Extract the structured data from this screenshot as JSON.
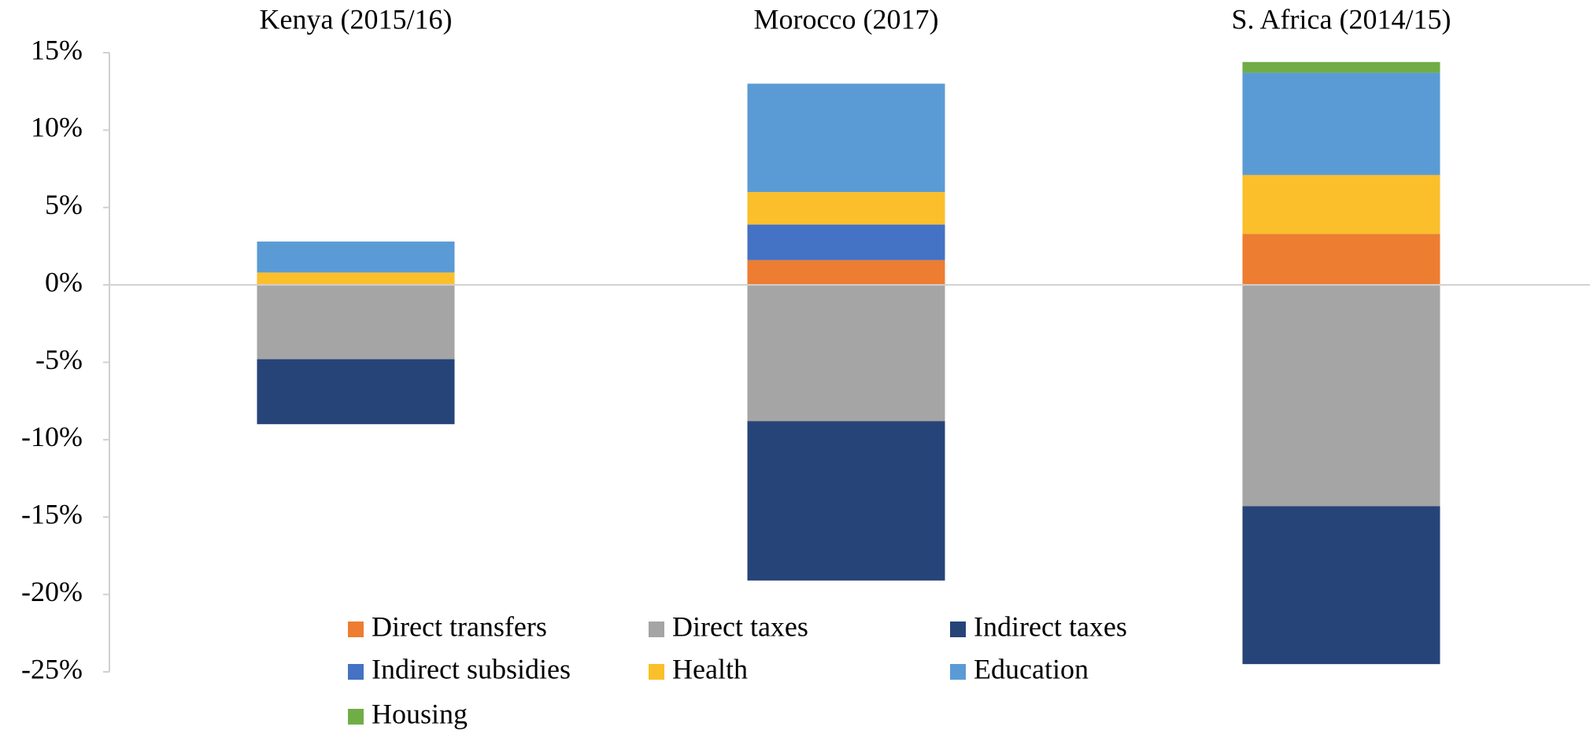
{
  "chart_data": {
    "type": "stacked-bar",
    "categories": [
      "Kenya (2015/16)",
      "Morocco (2017)",
      "S. Africa (2014/15)"
    ],
    "series": [
      {
        "name": "Direct transfers",
        "color": "#ED7D31",
        "values": [
          0,
          1.6,
          3.3
        ]
      },
      {
        "name": "Direct taxes",
        "color": "#A5A5A5",
        "values": [
          -4.8,
          -8.8,
          -14.3
        ]
      },
      {
        "name": "Indirect taxes",
        "color": "#264478",
        "values": [
          -4.2,
          -10.3,
          -10.2
        ]
      },
      {
        "name": "Indirect subsidies",
        "color": "#4472C4",
        "values": [
          0,
          2.3,
          0
        ]
      },
      {
        "name": "Health",
        "color": "#FBBF2B",
        "values": [
          0.8,
          2.1,
          3.8
        ]
      },
      {
        "name": "Education",
        "color": "#5B9BD5",
        "values": [
          2.0,
          7.0,
          6.6
        ]
      },
      {
        "name": "Housing",
        "color": "#70AD47",
        "values": [
          0,
          0,
          0.7
        ]
      }
    ],
    "ylim": [
      -25,
      15
    ],
    "yticks": [
      {
        "value": -25,
        "label": "-25%"
      },
      {
        "value": -20,
        "label": "-20%"
      },
      {
        "value": -15,
        "label": "-15%"
      },
      {
        "value": -10,
        "label": "-10%"
      },
      {
        "value": -5,
        "label": "-5%"
      },
      {
        "value": 0,
        "label": "0%"
      },
      {
        "value": 5,
        "label": "5%"
      },
      {
        "value": 10,
        "label": "10%"
      },
      {
        "value": 15,
        "label": "15%"
      }
    ],
    "legend": "bottom"
  }
}
